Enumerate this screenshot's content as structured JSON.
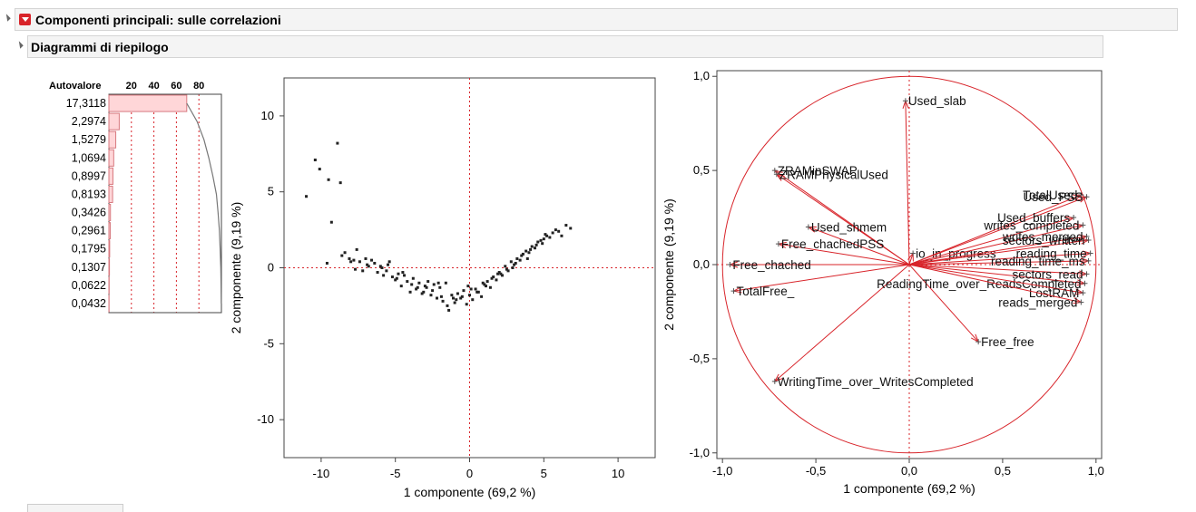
{
  "headers": {
    "main_title": "Componenti principali: sulle correlazioni",
    "sub_title": "Diagrammi di riepilogo"
  },
  "colors": {
    "accent_red": "#d8242a",
    "bar_fill": "#ffd6d8",
    "point_color": "#222222",
    "header_bg": "#f4f4f4"
  },
  "chart_data": [
    {
      "type": "bar",
      "orientation": "horizontal",
      "value_header": "Autovalore",
      "categories": [
        "17,3118",
        "2,2974",
        "1,5279",
        "1,0694",
        "0,8997",
        "0,8193",
        "0,3426",
        "0,2961",
        "0,1795",
        "0,1307",
        "0,0622",
        "0,0432"
      ],
      "values": [
        69.2,
        9.19,
        6.1,
        4.3,
        3.6,
        3.3,
        1.4,
        1.2,
        0.7,
        0.5,
        0.25,
        0.17
      ],
      "cumulative": [
        69.2,
        78.4,
        84.5,
        88.8,
        92.4,
        95.6,
        97.0,
        98.2,
        98.9,
        99.4,
        99.7,
        99.8
      ],
      "xlim": [
        0,
        100
      ],
      "xticks": [
        "20",
        "40",
        "60",
        "80"
      ],
      "grid": true
    },
    {
      "type": "scatter",
      "xlabel": "1 componente  (69,2 %)",
      "ylabel": "2 componente  (9,19 %)",
      "xlim": [
        -12.5,
        12.5
      ],
      "ylim": [
        -12.5,
        12.5
      ],
      "xticks": [
        "-10",
        "-5",
        "0",
        "5",
        "10"
      ],
      "yticks": [
        "10",
        "5",
        "0",
        "-5",
        "-10"
      ],
      "reference_lines": {
        "x": 0,
        "y": 0
      },
      "x": [
        -11,
        -10.4,
        -10.1,
        -9.5,
        -9.3,
        -8.9,
        -8.7,
        -8.4,
        -8.1,
        -8.0,
        -7.8,
        -7.6,
        -7.4,
        -7.2,
        -7.0,
        -6.8,
        -6.6,
        -6.4,
        -6.2,
        -6.0,
        -5.8,
        -5.6,
        -5.4,
        -5.2,
        -5.0,
        -4.8,
        -4.6,
        -4.4,
        -4.2,
        -4.0,
        -3.8,
        -3.6,
        -3.4,
        -3.2,
        -3.0,
        -2.8,
        -2.6,
        -2.4,
        -2.2,
        -2.0,
        -1.8,
        -1.6,
        -1.4,
        -1.2,
        -1.0,
        -0.8,
        -0.6,
        -0.4,
        -0.2,
        0.0,
        0.2,
        0.4,
        0.6,
        0.8,
        1.0,
        1.2,
        1.4,
        1.6,
        1.8,
        2.0,
        2.2,
        2.4,
        2.6,
        2.8,
        3.0,
        3.2,
        3.4,
        3.6,
        3.8,
        4.0,
        4.2,
        4.4,
        4.6,
        4.8,
        5.0,
        5.2,
        5.4,
        5.6,
        5.8,
        6.0,
        6.2,
        6.5,
        6.8,
        -9.6,
        -8.6,
        -7.7,
        -6.9,
        -5.9,
        -4.9,
        -3.9,
        -2.9,
        -1.9,
        -0.9,
        0.1,
        1.1,
        2.1,
        3.1,
        4.1,
        5.1,
        -5.5,
        -4.5,
        -3.5,
        -2.5,
        -1.5,
        -0.5,
        0.5,
        1.5,
        2.5,
        3.5,
        4.5,
        -3.1,
        -2.1,
        -1.1,
        -0.1,
        0.9,
        1.9,
        2.9,
        3.9,
        4.9
      ],
      "y": [
        4.7,
        7.1,
        6.5,
        5.8,
        3.0,
        8.2,
        5.6,
        1.0,
        0.6,
        0.4,
        0.5,
        1.2,
        0.4,
        -0.2,
        0.6,
        0.1,
        0.5,
        0.3,
        -0.3,
        0.1,
        -0.5,
        -0.2,
        0.4,
        -0.6,
        -0.8,
        -0.4,
        -1.2,
        -0.5,
        -0.9,
        -1.6,
        -0.7,
        -1.4,
        -1.0,
        -1.7,
        -1.2,
        -0.9,
        -1.8,
        -1.1,
        -2.0,
        -1.3,
        -2.2,
        -1.0,
        -2.8,
        -1.8,
        -2.3,
        -1.7,
        -2.0,
        -1.5,
        -2.4,
        -1.8,
        -2.1,
        -1.4,
        -1.6,
        -1.9,
        -1.1,
        -0.9,
        -1.3,
        -0.6,
        -0.8,
        -0.3,
        -0.5,
        0.1,
        -0.2,
        0.4,
        0.2,
        0.6,
        0.5,
        0.9,
        1.1,
        1.0,
        1.4,
        1.3,
        1.7,
        1.8,
        1.9,
        2.1,
        2.0,
        2.3,
        2.5,
        2.4,
        2.1,
        2.8,
        2.6,
        0.3,
        0.8,
        -0.1,
        0.2,
        0.0,
        -0.7,
        -1.1,
        -1.3,
        -1.9,
        -2.1,
        -1.4,
        -1.2,
        -0.4,
        0.3,
        1.2,
        2.2,
        0.2,
        -0.3,
        -1.3,
        -1.5,
        -2.5,
        -1.9,
        -1.6,
        -0.7,
        -0.1,
        0.8,
        1.5,
        -1.6,
        -1.0,
        -2.0,
        -1.2,
        -1.0,
        -0.4,
        0.0,
        0.6,
        1.6
      ]
    },
    {
      "type": "scatter",
      "subtype": "loading-plot",
      "xlabel": "1 componente  (69,2 %)",
      "ylabel": "2 componente  (9,19 %)",
      "xlim": [
        -1.03,
        1.03
      ],
      "ylim": [
        -1.03,
        1.03
      ],
      "xticks": [
        "-1,0",
        "-0,5",
        "0,0",
        "0,5",
        "1,0"
      ],
      "yticks": [
        "1,0",
        "0,5",
        "0,0",
        "-0,5",
        "-1,0"
      ],
      "unit_circle": true,
      "loadings": [
        {
          "label": "Used_slab",
          "x": -0.02,
          "y": 0.87
        },
        {
          "label": "ZRAMinSWAP",
          "x": -0.72,
          "y": 0.5
        },
        {
          "label": "ZRAMPhysicalUsed",
          "x": -0.71,
          "y": 0.48
        },
        {
          "label": "Used_shmem",
          "x": -0.54,
          "y": 0.2
        },
        {
          "label": "Free_chachedPSS",
          "x": -0.7,
          "y": 0.11
        },
        {
          "label": "Free_chached",
          "x": -0.96,
          "y": 0.0
        },
        {
          "label": "TotalFree_",
          "x": -0.94,
          "y": -0.14
        },
        {
          "label": "WritingTime_over_WritesCompleted",
          "x": -0.72,
          "y": -0.62
        },
        {
          "label": "Free_free",
          "x": 0.37,
          "y": -0.41
        },
        {
          "label": "ReadingTime_over_ReadsCompleted",
          "x": 0.94,
          "y": -0.1
        },
        {
          "label": "io_in_progress",
          "x": 0.02,
          "y": 0.06
        },
        {
          "label": "TotalUsed",
          "x": 0.92,
          "y": 0.37
        },
        {
          "label": "Used_PSS",
          "x": 0.95,
          "y": 0.36
        },
        {
          "label": "Used_buffers",
          "x": 0.88,
          "y": 0.25
        },
        {
          "label": "writes_completed",
          "x": 0.93,
          "y": 0.21
        },
        {
          "label": "writes_merged",
          "x": 0.95,
          "y": 0.15
        },
        {
          "label": "sectors_written",
          "x": 0.96,
          "y": 0.13
        },
        {
          "label": "reading_time",
          "x": 0.97,
          "y": 0.06
        },
        {
          "label": "reading_time_ms",
          "x": 0.96,
          "y": 0.02
        },
        {
          "label": "sectors_read",
          "x": 0.95,
          "y": -0.05
        },
        {
          "label": "LostRAM",
          "x": 0.93,
          "y": -0.15
        },
        {
          "label": "reads_merged",
          "x": 0.92,
          "y": -0.2
        }
      ]
    }
  ]
}
